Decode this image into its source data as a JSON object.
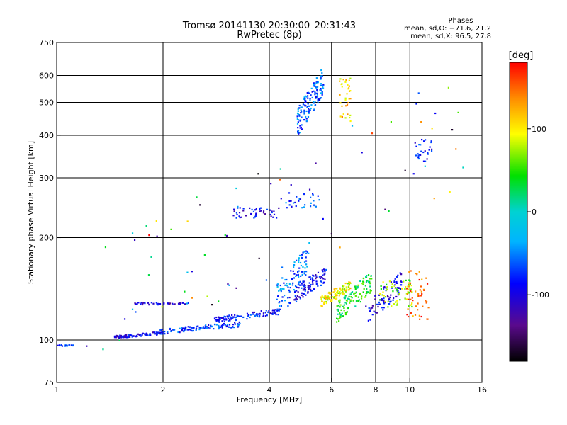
{
  "chart_data": {
    "type": "scatter",
    "title": "Tromsø 20141130 20:30:00–20:31:43",
    "subtitle": "RwPretec (8p)",
    "xlabel": "Frequency [MHz]",
    "ylabel": "Stationary phase Virtual Height [km]",
    "x_scale": "log",
    "y_scale": "log",
    "xlim": [
      1,
      16
    ],
    "ylim": [
      75,
      750
    ],
    "x_ticks": [
      1,
      2,
      4,
      6,
      8,
      10,
      16
    ],
    "y_ticks": [
      75,
      100,
      200,
      300,
      400,
      500,
      600,
      750
    ],
    "x_grid": [
      2,
      4,
      6,
      8,
      10
    ],
    "y_grid": [
      100,
      200,
      300,
      400,
      500,
      600
    ],
    "legend": {
      "title": "Phases",
      "line1": "mean, sd,O: −71.6, 21.2",
      "line2": "mean, sd,X:  96.5, 27.8",
      "position": "top-right"
    },
    "colorbar": {
      "label": "[deg]",
      "range": [
        -180,
        180
      ],
      "ticks": [
        100,
        0,
        -100
      ],
      "colormap": "rainbow"
    },
    "clusters": [
      {
        "x": [
          1.0,
          1.12
        ],
        "y": [
          96,
          97
        ],
        "phase": -65,
        "n": 18
      },
      {
        "x": [
          1.45,
          2.0
        ],
        "y": [
          101,
          106
        ],
        "phase": -95,
        "n": 90
      },
      {
        "x": [
          1.95,
          3.3
        ],
        "y": [
          104,
          113
        ],
        "phase": -75,
        "n": 120
      },
      {
        "x": [
          2.8,
          4.3
        ],
        "y": [
          112,
          124
        ],
        "phase": -85,
        "n": 110
      },
      {
        "x": [
          1.65,
          2.4
        ],
        "y": [
          127,
          129
        ],
        "phase": -110,
        "n": 45
      },
      {
        "x": [
          3.15,
          4.3
        ],
        "y": [
          228,
          245
        ],
        "phase": -95,
        "n": 45
      },
      {
        "x": [
          4.3,
          5.6
        ],
        "y": [
          245,
          272
        ],
        "phase": -70,
        "n": 30
      },
      {
        "x": [
          4.2,
          5.2
        ],
        "y": [
          120,
          195
        ],
        "phase": -55,
        "n": 90
      },
      {
        "x": [
          4.5,
          5.8
        ],
        "y": [
          125,
          165
        ],
        "phase": -90,
        "n": 110
      },
      {
        "x": [
          4.8,
          5.7
        ],
        "y": [
          395,
          640
        ],
        "phase": -60,
        "n": 150
      },
      {
        "x": [
          5.6,
          6.8
        ],
        "y": [
          125,
          150
        ],
        "phase": 95,
        "n": 110
      },
      {
        "x": [
          6.2,
          7.8
        ],
        "y": [
          112,
          160
        ],
        "phase": 40,
        "n": 120
      },
      {
        "x": [
          6.3,
          6.8
        ],
        "y": [
          440,
          590
        ],
        "phase": 110,
        "n": 35
      },
      {
        "x": [
          7.5,
          9.5
        ],
        "y": [
          110,
          160
        ],
        "phase": -100,
        "n": 80
      },
      {
        "x": [
          8.2,
          10.2
        ],
        "y": [
          125,
          150
        ],
        "phase": 70,
        "n": 60
      },
      {
        "x": [
          9.8,
          11.3
        ],
        "y": [
          115,
          160
        ],
        "phase": 150,
        "n": 50
      },
      {
        "x": [
          10.3,
          11.6
        ],
        "y": [
          335,
          390
        ],
        "phase": -85,
        "n": 28
      },
      {
        "x": [
          1.2,
          15.0
        ],
        "y": [
          80,
          650
        ],
        "phase": 0,
        "n": 70
      }
    ]
  }
}
